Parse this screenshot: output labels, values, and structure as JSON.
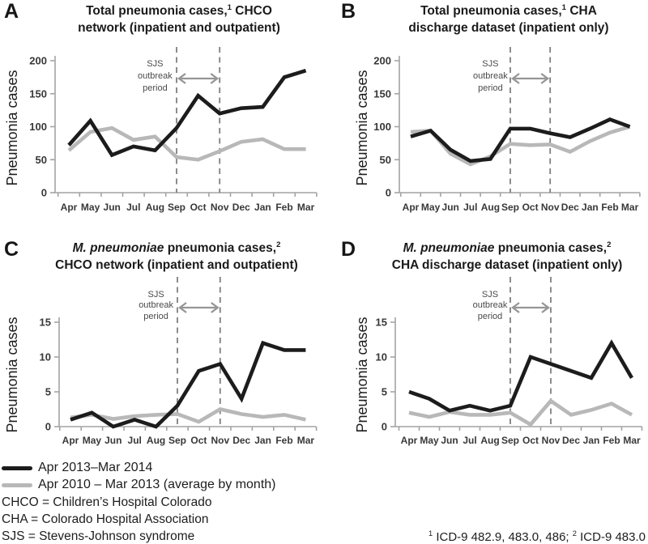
{
  "figure": {
    "legend": {
      "items": [
        {
          "label": "Apr 2013–Mar 2014",
          "color": "#1c1c1c"
        },
        {
          "label": "Apr 2010 – Mar 2013 (average by month)",
          "color": "#b8b8b8"
        }
      ]
    },
    "definitions": [
      "CHCO = Children’s Hospital Colorado",
      "CHA = Colorado Hospital Association",
      "SJS = Stevens-Johnson syndrome"
    ],
    "footnote_parts": [
      {
        "t": "1",
        "style": "sup"
      },
      {
        "t": " ICD-9 482.9, 483.0, 486; ",
        "style": ""
      },
      {
        "t": "2",
        "style": "sup"
      },
      {
        "t": " ICD-9 483.0",
        "style": ""
      }
    ]
  },
  "chart_data": [
    {
      "panel_label": "A",
      "type": "line",
      "title_line1_parts": [
        {
          "t": "Total pneumonia cases,",
          "style": ""
        },
        {
          "t": "1",
          "style": "sup"
        },
        {
          "t": " CHCO",
          "style": ""
        }
      ],
      "title_line2": "network (inpatient and outpatient)",
      "ylabel": "Pneumonia cases",
      "categories": [
        "Apr",
        "May",
        "Jun",
        "Jul",
        "Aug",
        "Sep",
        "Oct",
        "Nov",
        "Dec",
        "Jan",
        "Feb",
        "Mar"
      ],
      "ylim": [
        0,
        200
      ],
      "yticks": [
        0,
        50,
        100,
        150,
        200
      ],
      "grid": false,
      "series": [
        {
          "name": "Apr 2013–Mar 2014",
          "color": "#1c1c1c",
          "values": [
            72,
            109,
            57,
            70,
            64,
            98,
            147,
            120,
            128,
            130,
            175,
            185
          ]
        },
        {
          "name": "Apr 2010 – Mar 2013 (average by month)",
          "color": "#b8b8b8",
          "values": [
            64,
            92,
            98,
            80,
            85,
            54,
            50,
            63,
            77,
            81,
            66,
            66
          ]
        }
      ],
      "annotation": {
        "lines": [
          "SJS",
          "outbreak",
          "period"
        ],
        "from": "Sep",
        "to": "Nov"
      }
    },
    {
      "panel_label": "B",
      "type": "line",
      "title_line1_parts": [
        {
          "t": "Total pneumonia cases,",
          "style": ""
        },
        {
          "t": "1",
          "style": "sup"
        },
        {
          "t": " CHA",
          "style": ""
        }
      ],
      "title_line2": "discharge dataset (inpatient only)",
      "ylabel": "Pneumonia cases",
      "categories": [
        "Apr",
        "May",
        "Jun",
        "Jul",
        "Aug",
        "Sep",
        "Oct",
        "Nov",
        "Dec",
        "Jan",
        "Feb",
        "Mar"
      ],
      "ylim": [
        0,
        200
      ],
      "yticks": [
        0,
        50,
        100,
        150,
        200
      ],
      "grid": false,
      "series": [
        {
          "name": "Apr 2013–Mar 2014",
          "color": "#1c1c1c",
          "values": [
            85,
            94,
            65,
            48,
            51,
            97,
            97,
            90,
            84,
            97,
            111,
            100
          ]
        },
        {
          "name": "Apr 2010 – Mar 2013 (average by month)",
          "color": "#b8b8b8",
          "values": [
            92,
            94,
            59,
            43,
            55,
            74,
            72,
            73,
            62,
            78,
            91,
            100
          ]
        }
      ],
      "annotation": {
        "lines": [
          "SJS",
          "outbreak",
          "period"
        ],
        "from": "Sep",
        "to": "Nov"
      }
    },
    {
      "panel_label": "C",
      "type": "line",
      "title_line1_parts": [
        {
          "t": "M. pneumoniae",
          "style": "italic"
        },
        {
          "t": " pneumonia cases,",
          "style": ""
        },
        {
          "t": "2",
          "style": "sup"
        }
      ],
      "title_line2": "CHCO network (inpatient and outpatient)",
      "ylabel": "Pneumonia cases",
      "categories": [
        "Apr",
        "May",
        "Jun",
        "Jul",
        "Aug",
        "Sep",
        "Oct",
        "Nov",
        "Dec",
        "Jan",
        "Feb",
        "Mar"
      ],
      "ylim": [
        0,
        15
      ],
      "yticks": [
        0,
        5,
        10,
        15
      ],
      "grid": false,
      "series": [
        {
          "name": "Apr 2013–Mar 2014",
          "color": "#1c1c1c",
          "values": [
            1,
            2,
            0,
            1,
            0,
            3,
            8,
            9,
            4,
            12,
            11,
            11
          ]
        },
        {
          "name": "Apr 2010 – Mar 2013 (average by month)",
          "color": "#b8b8b8",
          "values": [
            1.3,
            1.7,
            1.1,
            1.5,
            1.7,
            1.8,
            0.7,
            2.5,
            1.8,
            1.4,
            1.7,
            1.0
          ]
        }
      ],
      "annotation": {
        "lines": [
          "SJS",
          "outbreak",
          "period"
        ],
        "from": "Sep",
        "to": "Nov"
      }
    },
    {
      "panel_label": "D",
      "type": "line",
      "title_line1_parts": [
        {
          "t": "M. pneumoniae",
          "style": "italic"
        },
        {
          "t": " pneumonia cases,",
          "style": ""
        },
        {
          "t": "2",
          "style": "sup"
        }
      ],
      "title_line2": "CHA discharge dataset (inpatient only)",
      "ylabel": "Pneumonia cases",
      "categories": [
        "Apr",
        "May",
        "Jun",
        "Jul",
        "Aug",
        "Sep",
        "Oct",
        "Nov",
        "Dec",
        "Jan",
        "Feb",
        "Mar"
      ],
      "ylim": [
        0,
        15
      ],
      "yticks": [
        0,
        5,
        10,
        15
      ],
      "grid": false,
      "series": [
        {
          "name": "Apr 2013–Mar 2014",
          "color": "#1c1c1c",
          "values": [
            5,
            4,
            2.3,
            3,
            2.3,
            3,
            10,
            9,
            8,
            7,
            12,
            7
          ]
        },
        {
          "name": "Apr 2010 – Mar 2013 (average by month)",
          "color": "#b8b8b8",
          "values": [
            2,
            1.4,
            2.1,
            1.7,
            1.7,
            2,
            0.3,
            3.7,
            1.7,
            2.4,
            3.3,
            1.7
          ]
        }
      ],
      "annotation": {
        "lines": [
          "SJS",
          "outbreak",
          "period"
        ],
        "from": "Sep",
        "to": "Nov"
      }
    }
  ]
}
